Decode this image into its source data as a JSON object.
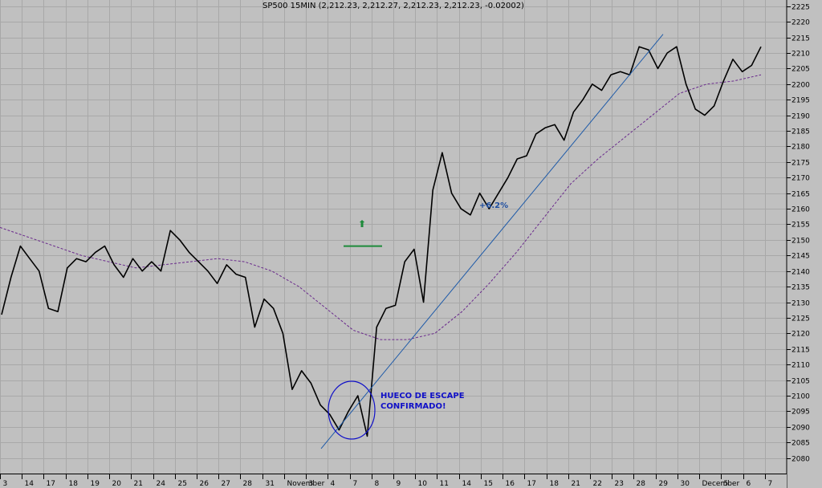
{
  "chart_data": {
    "type": "line",
    "title": "SP500 15MIN (2,212.23, 2,212.27, 2,212.23, 2,212.23, -0.02002)",
    "ylim": [
      2075,
      2227
    ],
    "y_ticks": [
      2080,
      2085,
      2090,
      2095,
      2100,
      2105,
      2110,
      2115,
      2120,
      2125,
      2130,
      2135,
      2140,
      2145,
      2150,
      2155,
      2160,
      2165,
      2170,
      2175,
      2180,
      2185,
      2190,
      2195,
      2200,
      2205,
      2210,
      2215,
      2220,
      2225
    ],
    "x_ticks": [
      "3",
      "14",
      "17",
      "18",
      "19",
      "20",
      "21",
      "24",
      "25",
      "26",
      "27",
      "28",
      "31",
      "November",
      "3",
      "4",
      "7",
      "8",
      "9",
      "10",
      "11",
      "14",
      "15",
      "16",
      "17",
      "18",
      "21",
      "22",
      "23",
      "28",
      "29",
      "30",
      "December",
      "5",
      "6",
      "7"
    ],
    "grid": true,
    "series": [
      {
        "values": [
          2126,
          2138,
          2148,
          2144,
          2140,
          2128,
          2127,
          2141,
          2144,
          2143,
          2146,
          2148,
          2142,
          2138,
          2144,
          2140,
          2143,
          2140,
          2153,
          2150,
          2146,
          2143,
          2140,
          2136,
          2142,
          2139,
          2138,
          2122,
          2131,
          2128,
          2120,
          2102,
          2108,
          2104,
          2097,
          2094,
          2089,
          2095,
          2100,
          2087,
          2122,
          2128,
          2129,
          2143,
          2147,
          2130,
          2166,
          2178,
          2165,
          2160,
          2158,
          2165,
          2160,
          2165,
          2170,
          2176,
          2177,
          2184,
          2186,
          2187,
          2182,
          2191,
          2195,
          2200,
          2198,
          2203,
          2204,
          2203,
          2212,
          2211,
          2205,
          2210,
          2212,
          2200,
          2192,
          2190,
          2193,
          2201,
          2208,
          2204,
          2206,
          2212
        ]
      }
    ],
    "moving_average_values": [
      2154,
      2151,
      2148,
      2145,
      2143,
      2141,
      2142,
      2143,
      2144,
      2143,
      2140,
      2135,
      2128,
      2121,
      2118,
      2118,
      2120,
      2127,
      2136,
      2146,
      2157,
      2168,
      2176,
      2183,
      2190,
      2197,
      2200,
      2201,
      2203
    ],
    "trendline": {
      "from": [
        2083,
        2083
      ],
      "to": [
        2216,
        2216
      ]
    },
    "support_line_value": 2148,
    "annotations": {
      "pct": "+6.2%",
      "gap_text_1": "HUECO DE ESCAPE",
      "gap_text_2": "CONFIRMADO!",
      "arrow": "⬆"
    },
    "colors": {
      "background": "#c0c0c0",
      "grid": "#a8a8a8",
      "price": "#000000",
      "moving_average": "#6a2a8c",
      "trendline": "#1e5aa8",
      "support": "#1d8a3a",
      "annotation_blue": "#1010c8",
      "pct_text": "#1e4ea0"
    }
  }
}
